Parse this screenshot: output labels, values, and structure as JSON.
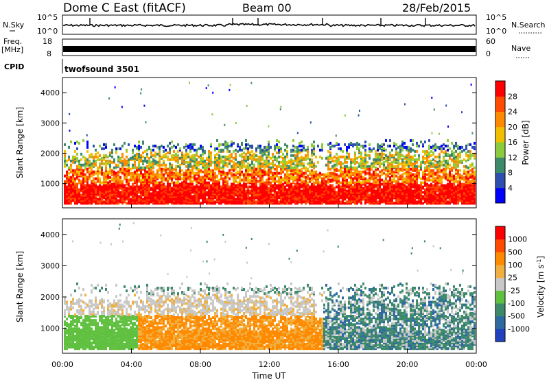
{
  "header": {
    "station": "Dome C East (fitACF)",
    "beam": "Beam 00",
    "date": "28/Feb/2015"
  },
  "chart_data": [
    {
      "type": "line",
      "name": "noise-panel",
      "ylabel": "N.Sky",
      "ytick_labels": [
        "10^5",
        "10^0"
      ],
      "right_ylabel": "N.Search",
      "right_ytick_labels": [
        "10^5",
        "10^0"
      ],
      "grid": false
    },
    {
      "type": "line",
      "name": "frequency-panel",
      "ylabel": "Freq.",
      "yunit": "[MHz]",
      "ylim": [
        8,
        18
      ],
      "yticks": [
        "18",
        "8"
      ],
      "right_ylabel": "Nave",
      "right_ylim": [
        0,
        60
      ],
      "right_yticks": [
        "60",
        "0"
      ]
    },
    {
      "type": "table",
      "name": "cpid-panel",
      "label": "CPID",
      "program": "twofsound 3501"
    },
    {
      "type": "heatmap",
      "name": "power-panel",
      "ylabel": "Slant Range [km]",
      "ylim": [
        200,
        4500
      ],
      "yticks": [
        "4000",
        "3000",
        "2000",
        "1000"
      ],
      "colorbar": {
        "label": "Power [dB]",
        "ticks": [
          "28",
          "24",
          "20",
          "16",
          "12",
          "8",
          "4"
        ],
        "colors": [
          "#0000ff",
          "#2e4fb0",
          "#3d8a6a",
          "#8ccc3c",
          "#f0c000",
          "#ff8a00",
          "#ff4a00",
          "#ff0000"
        ]
      }
    },
    {
      "type": "heatmap",
      "name": "velocity-panel",
      "ylabel": "Slant Range [km]",
      "ylim": [
        200,
        4500
      ],
      "yticks": [
        "4000",
        "3000",
        "2000",
        "1000"
      ],
      "xlabel": "Time UT",
      "xticks": [
        "00:00",
        "04:00",
        "08:00",
        "12:00",
        "16:00",
        "20:00",
        "00:00"
      ],
      "colorbar": {
        "label": "Velocity [m s",
        "label_superscript": "-1",
        "label_close": "]",
        "ticks": [
          "1000",
          "500",
          "100",
          "25",
          "-25",
          "-100",
          "-500",
          "-1000"
        ],
        "colors": [
          "#2040c0",
          "#2e6aa0",
          "#3d8a6a",
          "#60c040",
          "#c8c8c8",
          "#f0b040",
          "#ff8a00",
          "#ff4a00",
          "#ff0000"
        ]
      }
    }
  ]
}
